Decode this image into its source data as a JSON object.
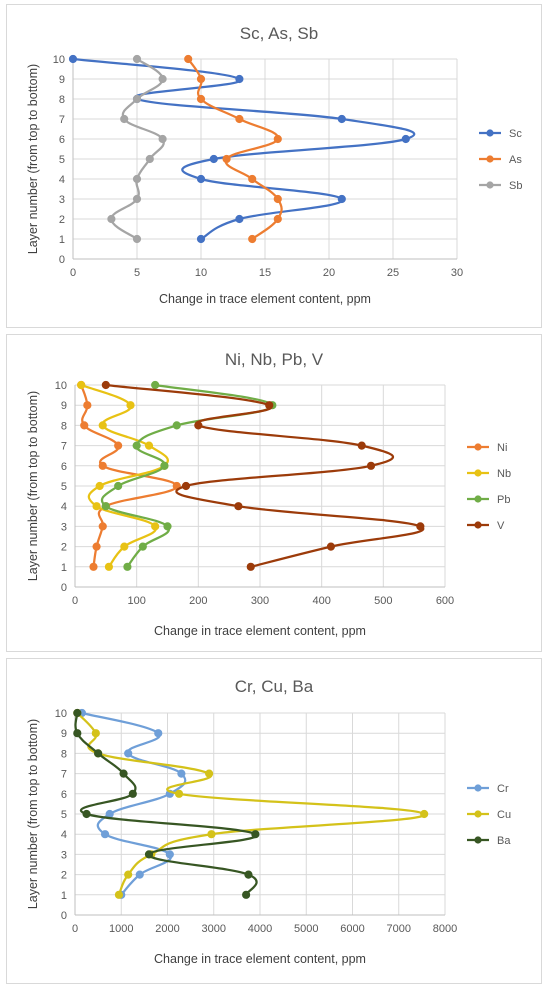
{
  "chart_data": [
    {
      "type": "line",
      "title": "Sc, As, Sb",
      "xlabel": "Change in trace element content, ppm",
      "ylabel": "Layer number (from top to bottom)",
      "xlim": [
        0,
        30
      ],
      "ylim": [
        0,
        10
      ],
      "xticks": [
        0,
        5,
        10,
        15,
        20,
        25,
        30
      ],
      "yticks": [
        0,
        1,
        2,
        3,
        4,
        5,
        6,
        7,
        8,
        9,
        10
      ],
      "grid": true,
      "legend": "right",
      "series": [
        {
          "name": "Sc",
          "color": "#4472c4",
          "x": [
            10,
            13,
            21,
            10,
            11,
            26,
            21,
            5,
            13,
            0
          ],
          "y": [
            1,
            2,
            3,
            4,
            5,
            6,
            7,
            8,
            9,
            10
          ]
        },
        {
          "name": "As",
          "color": "#ed7d31",
          "x": [
            14,
            16,
            16,
            14,
            12,
            16,
            13,
            10,
            10,
            9
          ],
          "y": [
            1,
            2,
            3,
            4,
            5,
            6,
            7,
            8,
            9,
            10
          ]
        },
        {
          "name": "Sb",
          "color": "#a5a5a5",
          "x": [
            5,
            3,
            5,
            5,
            6,
            7,
            4,
            5,
            7,
            5
          ],
          "y": [
            1,
            2,
            3,
            4,
            5,
            6,
            7,
            8,
            9,
            10
          ]
        }
      ]
    },
    {
      "type": "line",
      "title": "Ni, Nb, Pb, V",
      "xlabel": "Change in trace element content, ppm",
      "ylabel": "Layer number (from top to bottom)",
      "xlim": [
        0,
        600
      ],
      "ylim": [
        0,
        10
      ],
      "xticks": [
        0,
        100,
        200,
        300,
        400,
        500,
        600
      ],
      "yticks": [
        0,
        1,
        2,
        3,
        4,
        5,
        6,
        7,
        8,
        9,
        10
      ],
      "grid": true,
      "legend": "right",
      "series": [
        {
          "name": "Ni",
          "color": "#ed7d31",
          "x": [
            30,
            35,
            45,
            50,
            165,
            45,
            70,
            15,
            20,
            10
          ],
          "y": [
            1,
            2,
            3,
            4,
            5,
            6,
            7,
            8,
            9,
            10
          ]
        },
        {
          "name": "Nb",
          "color": "#e8c214",
          "x": [
            55,
            80,
            130,
            35,
            40,
            145,
            120,
            45,
            90,
            10
          ],
          "y": [
            1,
            2,
            3,
            4,
            5,
            6,
            7,
            8,
            9,
            10
          ]
        },
        {
          "name": "Pb",
          "color": "#70ad47",
          "x": [
            85,
            110,
            150,
            50,
            70,
            145,
            100,
            165,
            320,
            130
          ],
          "y": [
            1,
            2,
            3,
            4,
            5,
            6,
            7,
            8,
            9,
            10
          ]
        },
        {
          "name": "V",
          "color": "#9c3b0a",
          "x": [
            285,
            415,
            560,
            265,
            180,
            480,
            465,
            200,
            315,
            50
          ],
          "y": [
            1,
            2,
            3,
            4,
            5,
            6,
            7,
            8,
            9,
            10
          ]
        }
      ]
    },
    {
      "type": "line",
      "title": "Cr, Cu, Ba",
      "xlabel": "Change in trace element content, ppm",
      "ylabel": "Layer number (from top to bottom)",
      "xlim": [
        0,
        8000
      ],
      "ylim": [
        0,
        10
      ],
      "xticks": [
        0,
        1000,
        2000,
        3000,
        4000,
        5000,
        6000,
        7000,
        8000
      ],
      "yticks": [
        0,
        1,
        2,
        3,
        4,
        5,
        6,
        7,
        8,
        9,
        10
      ],
      "grid": true,
      "legend": "right",
      "series": [
        {
          "name": "Cr",
          "color": "#6f9fd8",
          "x": [
            1000,
            1400,
            2050,
            650,
            750,
            2050,
            2300,
            1150,
            1800,
            150
          ],
          "y": [
            1,
            2,
            3,
            4,
            5,
            6,
            7,
            8,
            9,
            10
          ]
        },
        {
          "name": "Cu",
          "color": "#d4c21a",
          "x": [
            950,
            1150,
            1650,
            2950,
            7550,
            2250,
            2900,
            500,
            450,
            50
          ],
          "y": [
            1,
            2,
            3,
            4,
            5,
            6,
            7,
            8,
            9,
            10
          ]
        },
        {
          "name": "Ba",
          "color": "#375623",
          "x": [
            3700,
            3750,
            1600,
            3900,
            250,
            1250,
            1050,
            500,
            50,
            50
          ],
          "y": [
            1,
            2,
            3,
            4,
            5,
            6,
            7,
            8,
            9,
            10
          ]
        }
      ]
    }
  ]
}
